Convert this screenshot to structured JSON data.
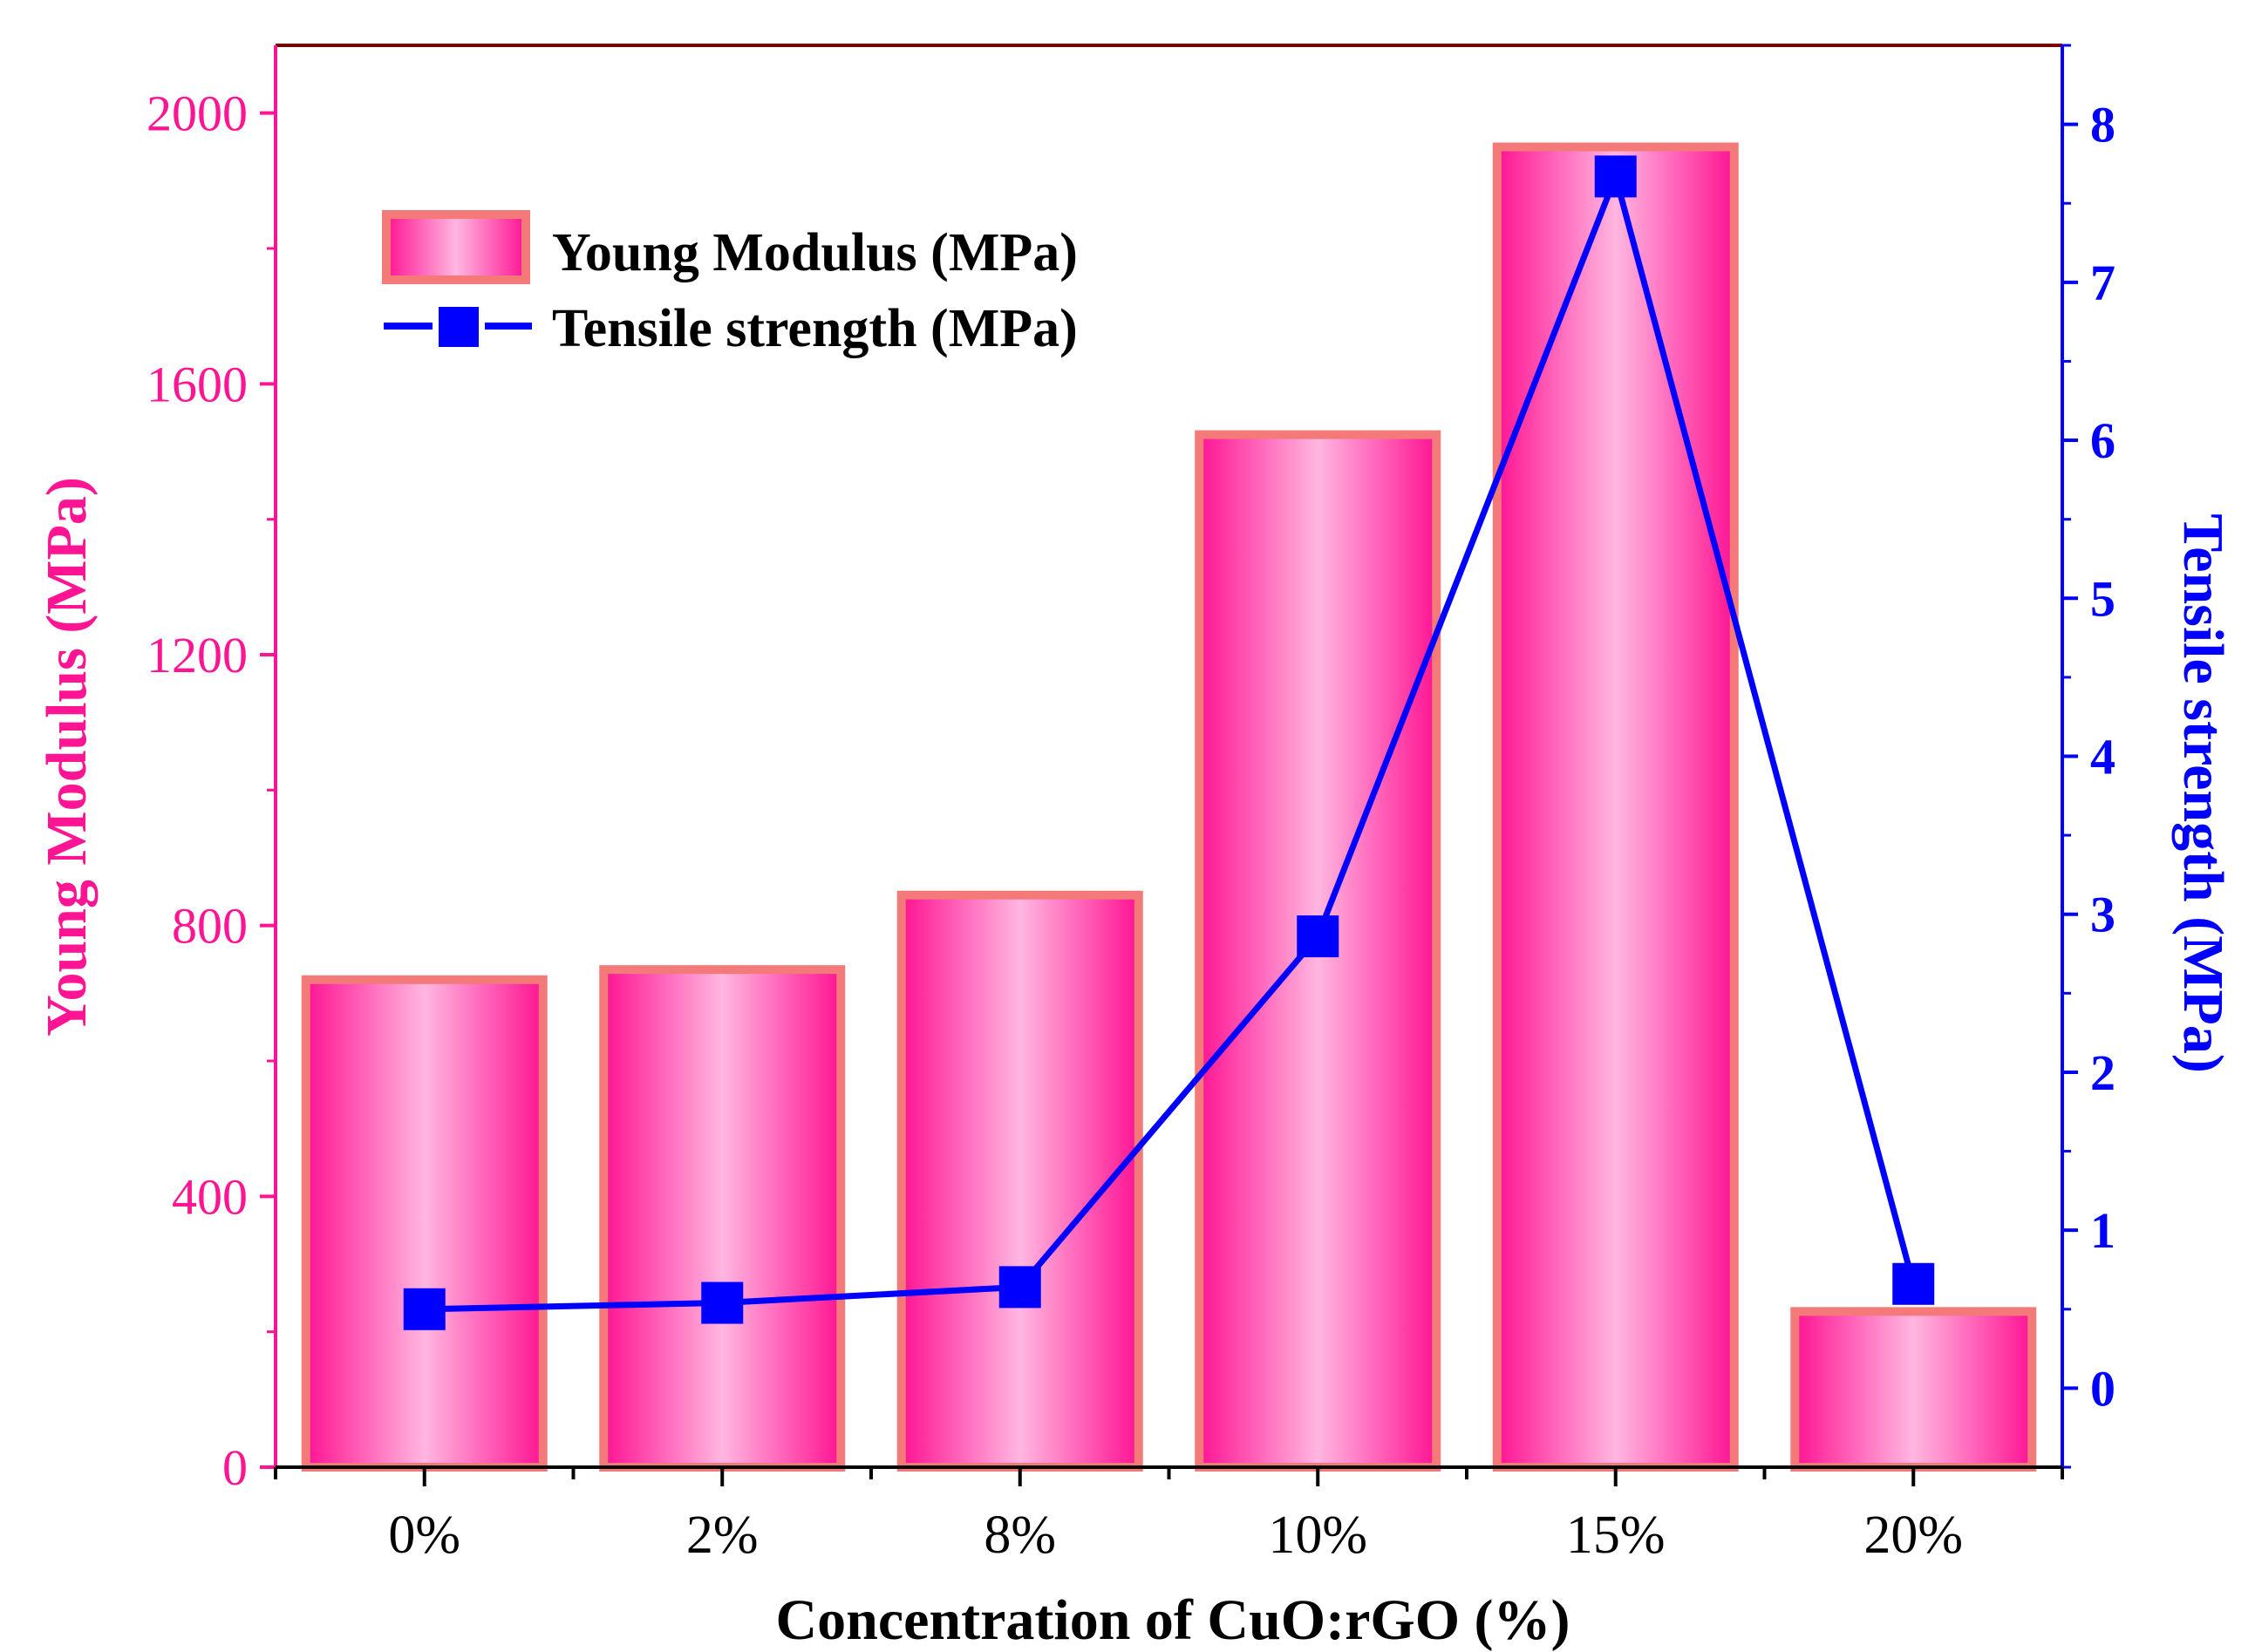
{
  "chart_data": {
    "type": "bar",
    "title": "",
    "xlabel": "Concentration of CuO:rGO (%)",
    "ylabel": "Young Modulus (MPa)",
    "y2label": "Tensile strength (MPa)",
    "categories": [
      "0%",
      "2%",
      "8%",
      "10%",
      "15%",
      "20%"
    ],
    "ylim": [
      0,
      2100
    ],
    "y2lim": [
      -0.5,
      8.5
    ],
    "yticks": [
      0,
      400,
      800,
      1200,
      1600,
      2000
    ],
    "y2ticks": [
      0,
      1,
      2,
      3,
      4,
      5,
      6,
      7,
      8
    ],
    "series": [
      {
        "name": "Young Modulus (MPa)",
        "type": "bar",
        "axis": "left",
        "values": [
          720,
          735,
          845,
          1525,
          1950,
          230
        ]
      },
      {
        "name": "Tensile strength (MPa)",
        "type": "line",
        "axis": "right",
        "values": [
          0.5,
          0.54,
          0.64,
          2.86,
          7.67,
          0.66
        ]
      }
    ],
    "legend": "top-left",
    "grid": false
  },
  "colors": {
    "bar_dark": "#ff1493",
    "bar_light": "#ffb6e0",
    "bar_border": "#f47979",
    "line": "#0000ff",
    "left_axis": "#ff1493",
    "right_axis": "#0000ff",
    "frame_top": "#7a0000",
    "text": "#000000"
  }
}
